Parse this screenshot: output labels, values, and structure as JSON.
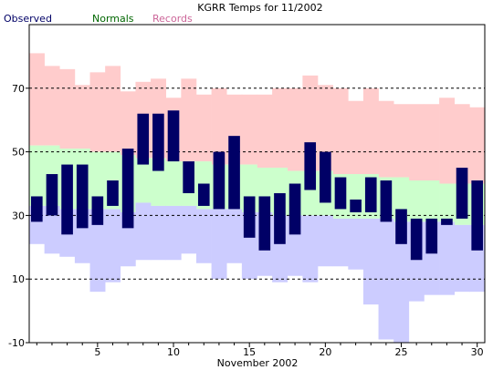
{
  "chart_data": {
    "type": "bar",
    "title": "KGRR Temps for 11/2002",
    "xlabel": "November 2002",
    "ylabel": "",
    "xlim": [
      0.5,
      30.5
    ],
    "ylim": [
      -10,
      90
    ],
    "x_ticks": [
      5,
      10,
      15,
      20,
      25,
      30
    ],
    "y_ticks": [
      -10,
      10,
      30,
      50,
      70
    ],
    "gridlines": [
      10,
      30,
      50,
      70
    ],
    "legend": {
      "placement": "top-left",
      "observed": "Observed",
      "normals": "Normals",
      "records": "Records"
    },
    "colors": {
      "observed": "#000066",
      "normals": "#ccffcc",
      "records_high": "#ffcccc",
      "records_low": "#ccccff",
      "legend_observed": "#000066",
      "legend_normals": "#006600",
      "legend_records": "#cc6699"
    },
    "days": [
      1,
      2,
      3,
      4,
      5,
      6,
      7,
      8,
      9,
      10,
      11,
      12,
      13,
      14,
      15,
      16,
      17,
      18,
      19,
      20,
      21,
      22,
      23,
      24,
      25,
      26,
      27,
      28,
      29,
      30
    ],
    "observed_high": [
      36,
      43,
      46,
      46,
      36,
      41,
      51,
      62,
      62,
      63,
      47,
      40,
      50,
      55,
      36,
      36,
      37,
      40,
      53,
      50,
      42,
      35,
      42,
      41,
      32,
      29,
      29,
      29,
      45,
      41
    ],
    "observed_low": [
      28,
      30,
      24,
      26,
      27,
      33,
      26,
      46,
      44,
      47,
      37,
      33,
      32,
      32,
      23,
      19,
      21,
      24,
      38,
      34,
      32,
      31,
      31,
      28,
      21,
      16,
      18,
      27,
      29,
      19
    ],
    "normal_high": [
      52,
      52,
      51,
      51,
      50,
      50,
      49,
      48,
      48,
      47,
      47,
      47,
      46,
      46,
      46,
      45,
      45,
      44,
      44,
      44,
      43,
      43,
      43,
      42,
      42,
      41,
      41,
      40,
      40,
      40
    ],
    "normal_low": [
      33,
      33,
      32,
      32,
      32,
      32,
      31,
      34,
      33,
      33,
      33,
      32,
      32,
      32,
      31,
      31,
      30,
      30,
      30,
      30,
      29,
      29,
      29,
      29,
      28,
      28,
      28,
      28,
      27,
      27
    ],
    "record_high": [
      81,
      77,
      76,
      71,
      75,
      77,
      69,
      72,
      73,
      67,
      73,
      68,
      70,
      68,
      68,
      68,
      70,
      70,
      74,
      71,
      70,
      66,
      70,
      66,
      65,
      65,
      65,
      67,
      65,
      64
    ],
    "record_low": [
      21,
      18,
      17,
      15,
      6,
      9,
      14,
      16,
      16,
      16,
      18,
      15,
      10,
      15,
      10,
      11,
      9,
      11,
      9,
      14,
      14,
      13,
      2,
      -9,
      -10,
      3,
      5,
      5,
      6,
      6
    ]
  }
}
